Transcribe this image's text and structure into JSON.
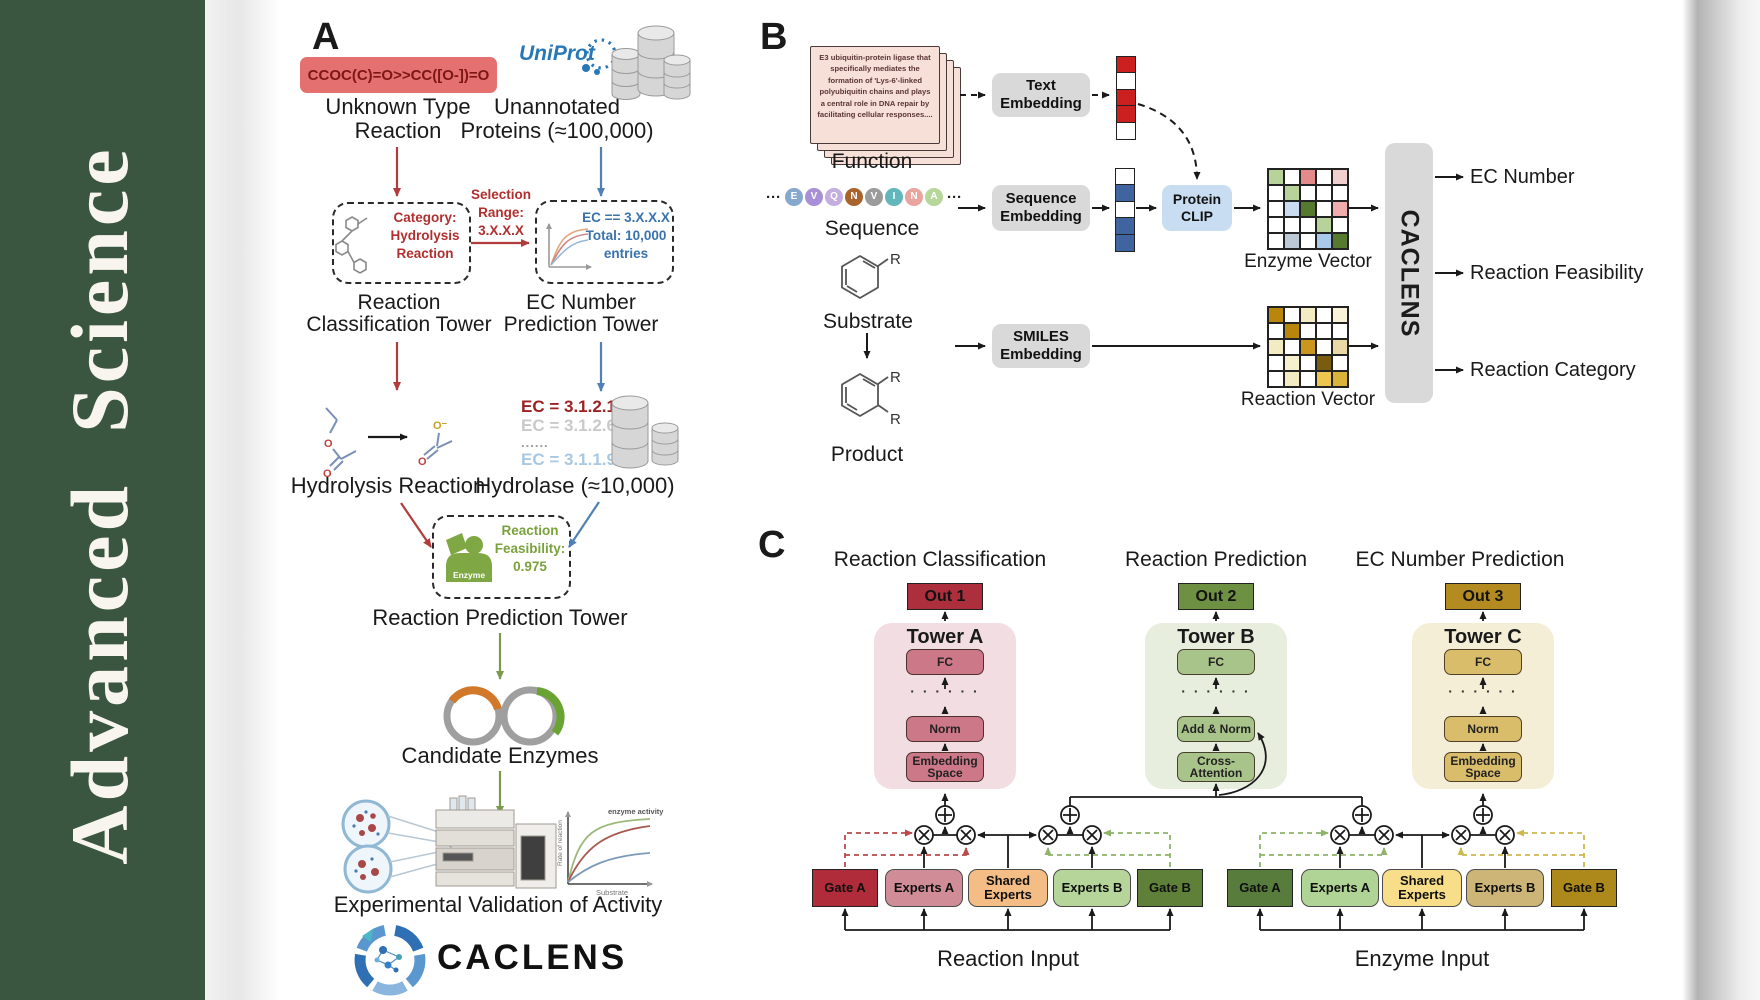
{
  "journal": {
    "name": "Advanced  Science",
    "band_color": "#3a5640"
  },
  "panelA": {
    "label": "A",
    "smiles": "CCOC(C)=O>>CC([O-])=O",
    "unknown_reaction": [
      "Unknown Type",
      "Reaction"
    ],
    "uniprot": "UniProt",
    "unannotated": [
      "Unannotated",
      "Proteins (≈100,000)"
    ],
    "category_box": [
      "Category:",
      "Hydrolysis",
      "Reaction"
    ],
    "selection": [
      "Selection",
      "Range:",
      "3.X.X.X"
    ],
    "ec_box": [
      "EC == 3.X.X.X",
      "Total: 10,000",
      "entries"
    ],
    "tower_left": [
      "Reaction",
      "Classification Tower"
    ],
    "tower_right": [
      "EC Number",
      "Prediction Tower"
    ],
    "hydrolysis_label": "Hydrolysis Reaction",
    "ec_list": [
      "EC = 3.1.2.1",
      "EC = 3.1.2.6",
      "......",
      "EC = 3.1.1.9"
    ],
    "hydrolase_label": "Hydrolase (≈10,000)",
    "enzyme_badge": "Enzyme",
    "feasibility": [
      "Reaction",
      "Feasibility:",
      "0.975"
    ],
    "tower_bottom": "Reaction Prediction Tower",
    "candidate": "Candidate Enzymes",
    "validation": "Experimental Validation of Activity",
    "brand": "CACLENS",
    "atoms": {
      "o": "O",
      "o_minus": "O⁻"
    },
    "graph": {
      "title": "enzyme activity",
      "ylabel": "Rate of reaction",
      "xlabel": "Substrate"
    }
  },
  "panelB": {
    "label": "B",
    "function_card": "E3 ubiquitin-protein ligase that specifically mediates the formation of 'Lys-6'-linked polyubiquitin chains and plays a central role in DNA repair by facilitating cellular responses....",
    "function_label": "Function",
    "ellipsis": "···",
    "sequence_tokens": [
      {
        "letter": "E",
        "color": "#85a8cc"
      },
      {
        "letter": "V",
        "color": "#a98fd6"
      },
      {
        "letter": "Q",
        "color": "#c3aee0"
      },
      {
        "letter": "N",
        "color": "#a9642e"
      },
      {
        "letter": "V",
        "color": "#9b9b9b"
      },
      {
        "letter": "I",
        "color": "#62b7bc"
      },
      {
        "letter": "N",
        "color": "#e8a49e"
      },
      {
        "letter": "A",
        "color": "#b7d79a"
      }
    ],
    "sequence_label": "Sequence",
    "substrate_label": "Substrate",
    "product_label": "Product",
    "r_group": "R",
    "text_embedding": [
      "Text",
      "Embedding"
    ],
    "sequence_embedding": [
      "Sequence",
      "Embedding"
    ],
    "smiles_embedding": [
      "SMILES",
      "Embedding"
    ],
    "protein_clip": [
      "Protein",
      "CLIP"
    ],
    "text_vector_cells": [
      "#cc1f1f",
      "#ffffff",
      "#cc1f1f",
      "#cc1f1f",
      "#ffffff"
    ],
    "sequence_vector_cells": [
      "#ffffff",
      "#3f64a0",
      "#ffffff",
      "#3f64a0",
      "#3f64a0"
    ],
    "enzyme_vector": {
      "label": "Enzyme Vector",
      "cells": [
        [
          "#b7d39a",
          "#ffffff",
          "#e38b8b",
          "#ffffff",
          "#f2cfcf"
        ],
        [
          "#ffffff",
          "#b7d39a",
          "#ffffff",
          "#ffffff",
          "#ffffff"
        ],
        [
          "#ffffff",
          "#ccdcf0",
          "#55792f",
          "#ffffff",
          "#efadad"
        ],
        [
          "#ffffff",
          "#ffffff",
          "#ffffff",
          "#b7d39a",
          "#ffffff"
        ],
        [
          "#ffffff",
          "#bcc8d4",
          "#ffffff",
          "#a9c9ea",
          "#55792f"
        ]
      ]
    },
    "reaction_vector": {
      "label": "Reaction Vector",
      "cells": [
        [
          "#b8860b",
          "#ffffff",
          "#f3ecc3",
          "#ffffff",
          "#faf3d9"
        ],
        [
          "#ffffff",
          "#b8860b",
          "#ffffff",
          "#ffffff",
          "#ffffff"
        ],
        [
          "#f3ecc3",
          "#ffffff",
          "#c9971d",
          "#ffffff",
          "#e9d8a6"
        ],
        [
          "#ffffff",
          "#f7f0cf",
          "#ffffff",
          "#7a5c10",
          "#ffffff"
        ],
        [
          "#ffffff",
          "#f3ecc3",
          "#ffffff",
          "#ecc64e",
          "#d9b33a"
        ]
      ]
    },
    "caclens_block": "CACLENS",
    "outputs": [
      "EC Number",
      "Reaction Feasibility",
      "Reaction Category"
    ]
  },
  "panelC": {
    "label": "C",
    "towers": [
      {
        "title": "Reaction Classification",
        "out": "Out 1",
        "name": "Tower A",
        "layers": [
          "FC",
          "Norm",
          "Embedding Space"
        ],
        "dots": "· · · · · ·",
        "colors": {
          "panel": "#f2dee2",
          "box": "#cc7888",
          "out": "#ad2e3c"
        }
      },
      {
        "title": "Reaction Prediction",
        "out": "Out 2",
        "name": "Tower B",
        "layers": [
          "FC",
          "Add & Norm",
          "Cross-Attention"
        ],
        "dots": "· · · · · ·",
        "colors": {
          "panel": "#e7eede",
          "box": "#a9c48a",
          "out": "#6d9043"
        }
      },
      {
        "title": "EC Number Prediction",
        "out": "Out 3",
        "name": "Tower C",
        "layers": [
          "FC",
          "Norm",
          "Embedding Space"
        ],
        "dots": "· · · · · ·",
        "colors": {
          "panel": "#f4eed6",
          "box": "#d9bd6b",
          "out": "#b38b20"
        }
      }
    ],
    "moe_reaction": {
      "boxes": [
        {
          "label": "Gate A",
          "color": "#b02c3a"
        },
        {
          "label": "Experts A",
          "color": "#d08d97"
        },
        {
          "label": "Shared Experts",
          "color": "#f3bd85"
        },
        {
          "label": "Experts B",
          "color": "#b5d59a"
        },
        {
          "label": "Gate B",
          "color": "#5f8039"
        }
      ],
      "input_label": "Reaction Input"
    },
    "moe_enzyme": {
      "boxes": [
        {
          "label": "Gate A",
          "color": "#587c3b"
        },
        {
          "label": "Experts A",
          "color": "#b0d495"
        },
        {
          "label": "Shared Experts",
          "color": "#f8de88"
        },
        {
          "label": "Experts B",
          "color": "#ccb577"
        },
        {
          "label": "Gate B",
          "color": "#ad881a"
        }
      ],
      "input_label": "Enzyme Input"
    }
  }
}
